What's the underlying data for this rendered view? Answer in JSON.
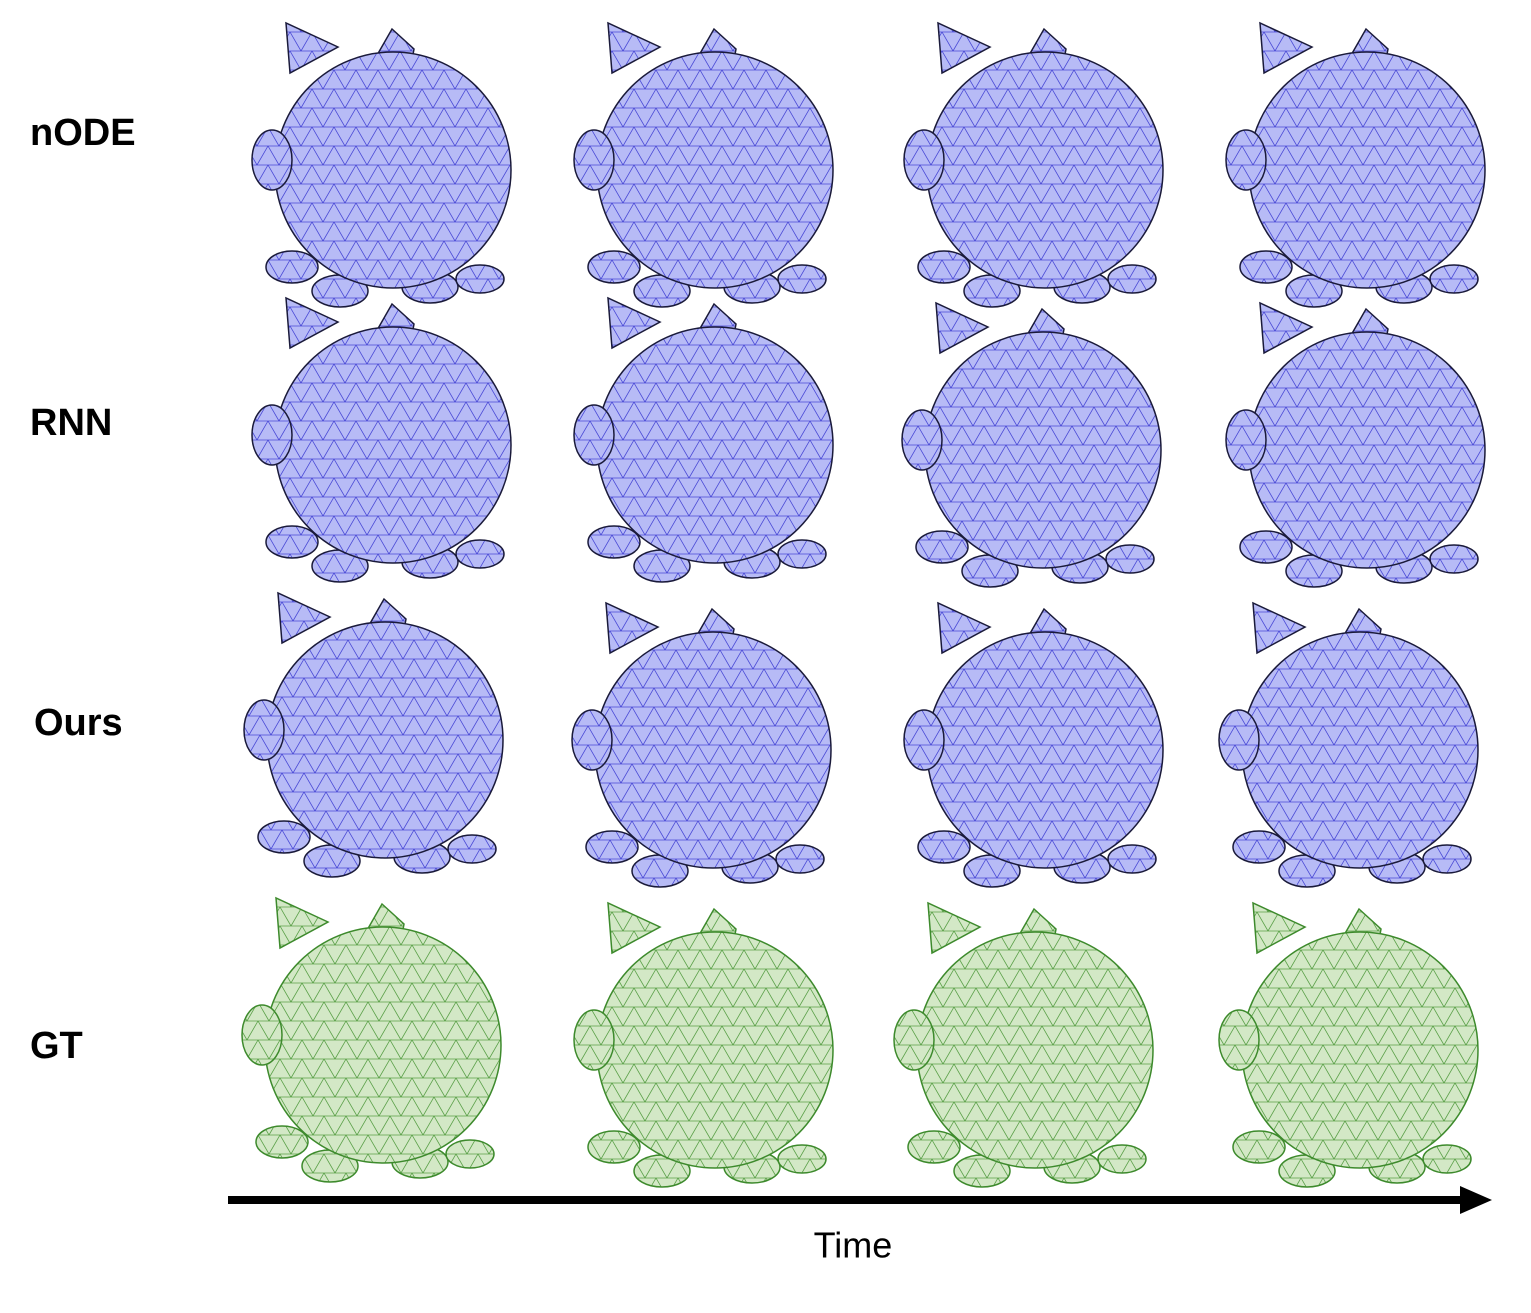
{
  "row_labels": [
    "nODE",
    "RNN",
    "Ours",
    "GT"
  ],
  "time_axis_label": "Time"
}
